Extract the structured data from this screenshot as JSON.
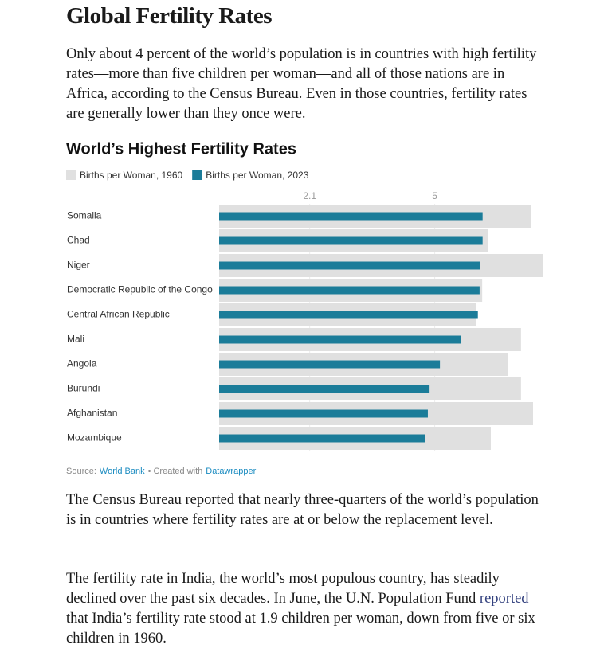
{
  "header": {
    "title": "Global Fertility Rates"
  },
  "paragraphs": [
    {
      "text": "Only about 4 percent of the world’s population is in countries with high fertility rates—more than five children per woman—and all of those nations are in Africa, according to the Census Bureau. Even in those countries, fertility rates are generally lower than they once were."
    },
    {
      "text": "The Census Bureau reported that nearly three-quarters of the world’s population is in countries where fertility rates are at or below the replacement level."
    },
    {
      "before": "The fertility rate in India, the world’s most populous country, has steadily declined over the past six decades. In June, the U.N. Population Fund",
      "link": "reported",
      "after": "that India’s fertility rate stood at 1.9 children per woman, down from five or six children in 1960."
    }
  ],
  "chart_data": {
    "type": "bar",
    "orientation": "horizontal",
    "title": "World’s Highest Fertility Rates",
    "categories": [
      "Somalia",
      "Chad",
      "Niger",
      "Democratic Republic of the Congo",
      "Central African Republic",
      "Mali",
      "Angola",
      "Burundi",
      "Afghanistan",
      "Mozambique"
    ],
    "series": [
      {
        "name": "Births per Woman, 1960",
        "color": "#e0e0e0",
        "values": [
          7.24,
          6.24,
          7.52,
          6.1,
          5.95,
          7.0,
          6.7,
          7.0,
          7.28,
          6.3
        ]
      },
      {
        "name": "Births per Woman, 2023",
        "color": "#1b7c99",
        "values": [
          6.11,
          6.11,
          6.06,
          6.04,
          6.0,
          5.61,
          5.12,
          4.88,
          4.84,
          4.77
        ]
      }
    ],
    "xlim": [
      0,
      7.52
    ],
    "xticks": [
      2.1,
      5
    ],
    "grid": true,
    "source_label": "Source:",
    "source": "World Bank",
    "created_with": "• Created with",
    "tool": "Datawrapper"
  }
}
